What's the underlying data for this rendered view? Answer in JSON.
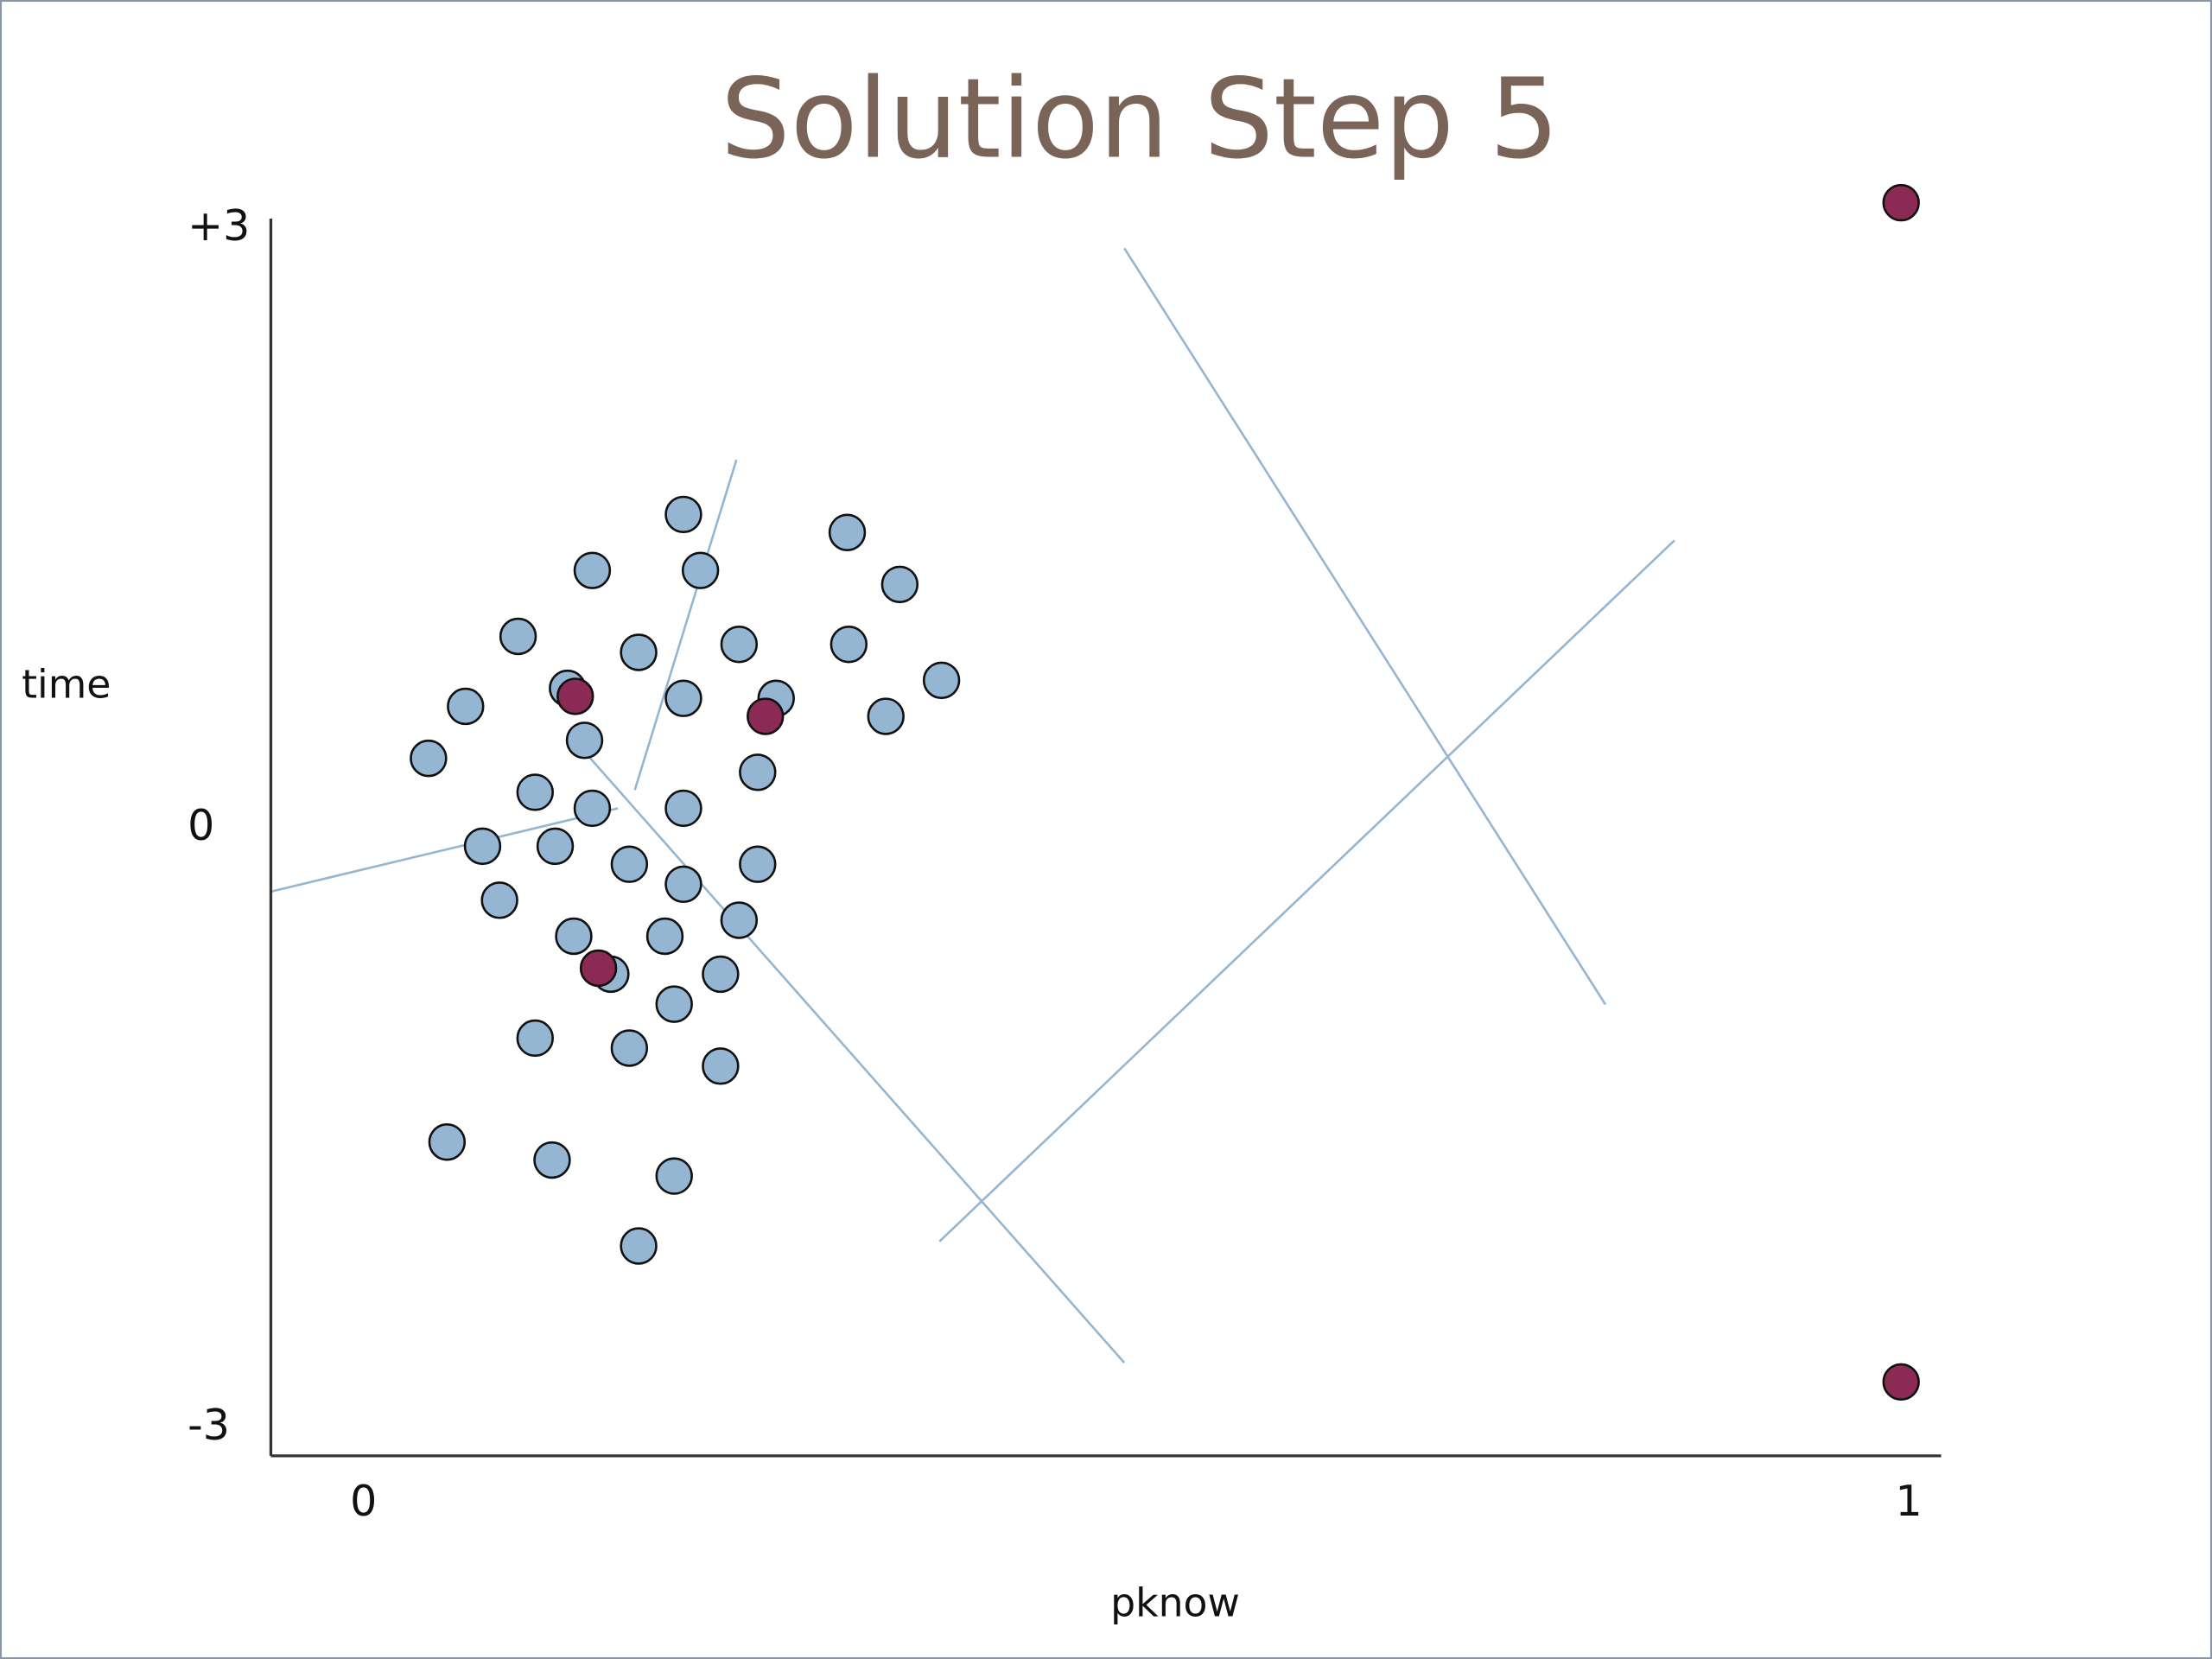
{
  "chart_data": {
    "type": "scatter",
    "title": "Solution Step 5",
    "x_label": "pknow",
    "y_label": "time",
    "xlim": [
      -0.06,
      1.02
    ],
    "ylim": [
      -3.14,
      3.05
    ],
    "xticks": [
      0,
      1
    ],
    "yticks": [
      {
        "value": 3,
        "label": "+3"
      },
      0,
      -3
    ],
    "series": [
      {
        "color": "#94b6d2",
        "x": [
          0.207,
          0.313,
          0.148,
          0.218,
          0.347,
          0.1,
          0.178,
          0.243,
          0.314,
          0.374,
          0.066,
          0.132,
          0.207,
          0.267,
          0.338,
          0.042,
          0.143,
          0.255,
          0.111,
          0.148,
          0.207,
          0.077,
          0.124,
          0.172,
          0.255,
          0.207,
          0.088,
          0.243,
          0.136,
          0.195,
          0.16,
          0.231,
          0.201,
          0.111,
          0.172,
          0.231,
          0.054,
          0.122,
          0.201,
          0.178
        ],
        "values": [
          1.57,
          1.48,
          1.29,
          1.29,
          1.22,
          0.96,
          0.88,
          0.92,
          0.92,
          0.74,
          0.61,
          0.7,
          0.65,
          0.65,
          0.56,
          0.35,
          0.44,
          0.28,
          0.18,
          0.1,
          0.1,
          -0.09,
          -0.09,
          -0.18,
          -0.18,
          -0.28,
          -0.36,
          -0.46,
          -0.54,
          -0.54,
          -0.73,
          -0.73,
          -0.88,
          -1.05,
          -1.1,
          -1.19,
          -1.57,
          -1.66,
          -1.74,
          -2.09
        ]
      },
      {
        "color": "#8b2a55",
        "x": [
          0.995,
          0.137,
          0.26,
          0.152,
          0.995
        ],
        "values": [
          3.13,
          0.66,
          0.56,
          -0.7,
          -2.77
        ]
      }
    ]
  }
}
